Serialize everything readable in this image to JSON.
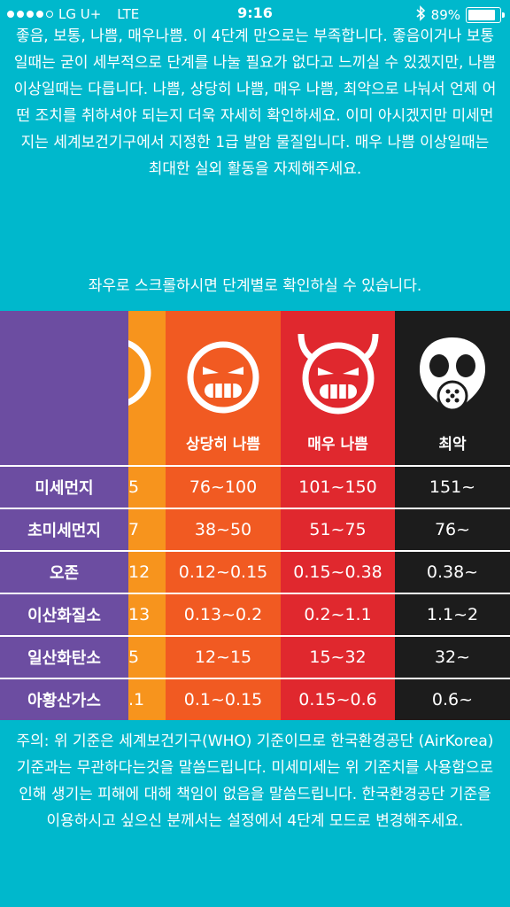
{
  "status_bar": {
    "carrier": "LG U+",
    "network": "LTE",
    "time": "9:16",
    "battery_pct": "89%",
    "battery_level": 0.89,
    "signal_bars_filled": 4,
    "signal_bars_total": 5
  },
  "intro_text": "좋음, 보통, 나쁨, 매우나쁨. 이 4단계 만으로는 부족합니다. 좋음이거나 보통일때는 굳이 세부적으로 단계를 나눌 필요가 없다고 느끼실 수 있겠지만, 나쁨 이상일때는 다릅니다. 나쁨, 상당히 나쁨, 매우 나쁨, 최악으로 나눠서 언제 어떤 조치를 취하셔야 되는지 더욱 자세히 확인하세요. 이미 아시겠지만 미세먼지는 세계보건기구에서 지정한 1급 발암 물질입니다. 매우 나쁨 이상일때는 최대한 실외 활동을 자제해주세요.",
  "scroll_hint": "좌우로 스크롤하시면 단계별로 확인하실 수 있습니다.",
  "table": {
    "row_labels": [
      "미세먼지",
      "초미세먼지",
      "오존",
      "이산화질소",
      "일산화탄소",
      "아황산가스"
    ],
    "partial_column": {
      "color": "#f7941d",
      "values": [
        "5",
        "7",
        "12",
        "13",
        "5",
        ".1"
      ]
    },
    "columns": [
      {
        "name": "상당히 나쁨",
        "color": "#f15a22",
        "icon": "angry-face-icon",
        "values": [
          "76~100",
          "38~50",
          "0.12~0.15",
          "0.13~0.2",
          "12~15",
          "0.1~0.15"
        ]
      },
      {
        "name": "매우 나쁨",
        "color": "#e0282e",
        "icon": "devil-face-icon",
        "values": [
          "101~150",
          "51~75",
          "0.15~0.38",
          "0.2~1.1",
          "15~32",
          "0.15~0.6"
        ]
      },
      {
        "name": "최악",
        "color": "#1c1c1c",
        "icon": "gas-mask-icon",
        "values": [
          "151~",
          "76~",
          "0.38~",
          "1.1~2",
          "32~",
          "0.6~"
        ]
      }
    ],
    "label_color": "#6c4da1"
  },
  "footer_note": "주의: 위 기준은 세계보건기구(WHO) 기준이므로 한국환경공단 (AirKorea) 기준과는 무관하다는것을 말씀드립니다. 미세미세는 위 기준치를 사용함으로 인해 생기는 피해에 대해 책임이 없음을 말씀드립니다. 한국환경공단 기준을 이용하시고 싶으신 분께서는 설정에서 4단계 모드로 변경해주세요."
}
